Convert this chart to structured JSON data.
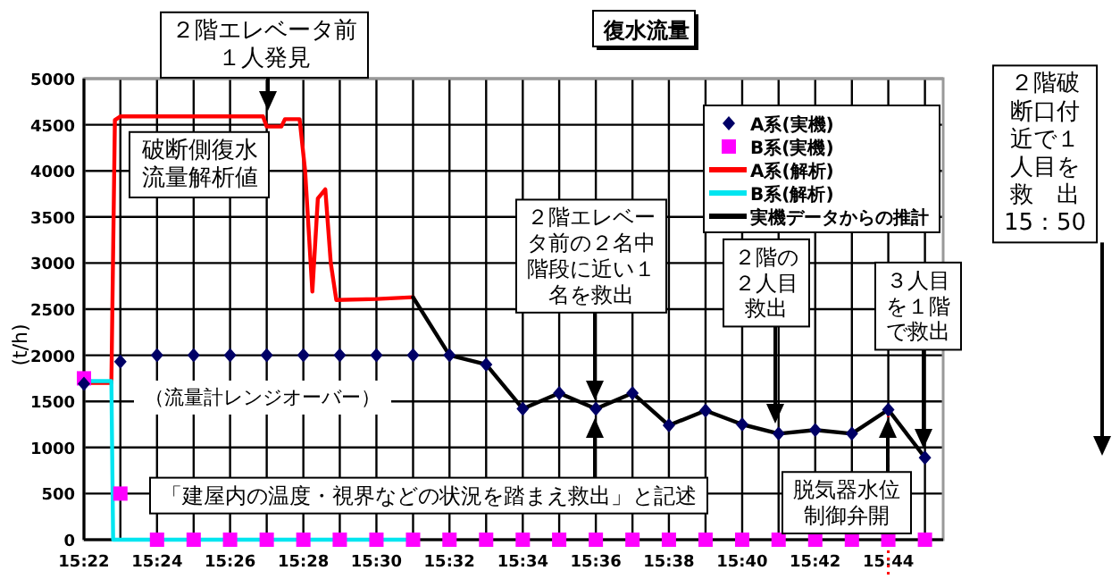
{
  "chart_data": {
    "type": "line",
    "title": "復水流量",
    "ylabel": "(t/h)",
    "xlim": [
      15.3667,
      15.7583
    ],
    "ylim": [
      0,
      5000
    ],
    "xticks": [
      {
        "value": 15.3667,
        "label": "15:22"
      },
      {
        "value": 15.3833,
        "label": null
      },
      {
        "value": 15.4,
        "label": "15:24"
      },
      {
        "value": 15.4167,
        "label": null
      },
      {
        "value": 15.4333,
        "label": "15:26"
      },
      {
        "value": 15.45,
        "label": null
      },
      {
        "value": 15.4667,
        "label": "15:28"
      },
      {
        "value": 15.4833,
        "label": null
      },
      {
        "value": 15.5,
        "label": "15:30"
      },
      {
        "value": 15.5167,
        "label": null
      },
      {
        "value": 15.5333,
        "label": "15:32"
      },
      {
        "value": 15.55,
        "label": null
      },
      {
        "value": 15.5667,
        "label": "15:34"
      },
      {
        "value": 15.5833,
        "label": null
      },
      {
        "value": 15.6,
        "label": "15:36"
      },
      {
        "value": 15.6167,
        "label": null
      },
      {
        "value": 15.6333,
        "label": "15:38"
      },
      {
        "value": 15.65,
        "label": null
      },
      {
        "value": 15.6667,
        "label": "15:40"
      },
      {
        "value": 15.6833,
        "label": null
      },
      {
        "value": 15.7,
        "label": "15:42"
      },
      {
        "value": 15.7167,
        "label": null
      },
      {
        "value": 15.7333,
        "label": "15:44"
      },
      {
        "value": 15.75,
        "label": null
      }
    ],
    "yticks": [
      0,
      500,
      1000,
      1500,
      2000,
      2500,
      3000,
      3500,
      4000,
      4500,
      5000
    ],
    "grid": true,
    "legend": "top right",
    "series": [
      {
        "name": "A系(実機)",
        "type": "scatter",
        "marker": "diamond",
        "color": "#000066",
        "x": [
          15.3667,
          15.3833,
          15.4,
          15.4167,
          15.4333,
          15.45,
          15.4667,
          15.4833,
          15.5,
          15.5167,
          15.5333,
          15.55,
          15.5667,
          15.5833,
          15.6,
          15.6167,
          15.6333,
          15.65,
          15.6667,
          15.6833,
          15.7,
          15.7167,
          15.7333,
          15.75
        ],
        "values": [
          1690,
          1930,
          2000,
          2000,
          2000,
          2000,
          2000,
          2000,
          2000,
          2000,
          2000,
          1900,
          1420,
          1590,
          1420,
          1590,
          1240,
          1400,
          1250,
          1150,
          1190,
          1150,
          1410,
          890
        ]
      },
      {
        "name": "B系(実機)",
        "type": "scatter",
        "marker": "square",
        "color": "#ff00ff",
        "x": [
          15.3667,
          15.3833,
          15.4,
          15.4167,
          15.4333,
          15.45,
          15.4667,
          15.4833,
          15.5,
          15.5167,
          15.5333,
          15.55,
          15.5667,
          15.5833,
          15.6,
          15.6167,
          15.6333,
          15.65,
          15.6667,
          15.6833,
          15.7,
          15.7167,
          15.7333,
          15.75
        ],
        "values": [
          1750,
          500,
          0,
          0,
          0,
          0,
          0,
          0,
          0,
          0,
          0,
          0,
          0,
          0,
          0,
          0,
          0,
          0,
          0,
          0,
          0,
          0,
          0,
          0
        ]
      },
      {
        "name": "A系(解析)",
        "color": "#ff0000",
        "x": [
          15.3667,
          15.3792,
          15.3808,
          15.3833,
          15.4483,
          15.45,
          15.4567,
          15.4583,
          15.465,
          15.4675,
          15.4708,
          15.4733,
          15.4767,
          15.4792,
          15.4817,
          15.5,
          15.5167
        ],
        "values": [
          1700,
          1700,
          4550,
          4590,
          4590,
          4480,
          4480,
          4560,
          4560,
          4000,
          2690,
          3700,
          3800,
          3000,
          2600,
          2610,
          2630
        ]
      },
      {
        "name": "B系(解析)",
        "color": "#00e5f0",
        "x": [
          15.3667,
          15.3792,
          15.38,
          15.5167
        ],
        "values": [
          1720,
          1720,
          0,
          0
        ]
      },
      {
        "name": "実機データからの推計",
        "color": "#000000",
        "x": [
          15.5167,
          15.5333,
          15.55,
          15.5667,
          15.5833,
          15.6,
          15.6167,
          15.6333,
          15.65,
          15.6667,
          15.6833,
          15.7,
          15.7167,
          15.7333,
          15.75
        ],
        "values": [
          2630,
          2000,
          1900,
          1420,
          1590,
          1420,
          1590,
          1240,
          1400,
          1250,
          1150,
          1190,
          1150,
          1410,
          890
        ]
      }
    ],
    "ref_lines": [
      {
        "axis": "x",
        "value": 15.7333,
        "color": "#ff0000",
        "line_style": "dotted"
      }
    ],
    "annotations": [
      "２階エレベータ前１人発見",
      "破断側復水流量解析値",
      "（流量計レンジオーバー）",
      "２階エレベータ前の２名中階段に近い１名を救出",
      "「建屋内の温度・視界などの状況を踏まえ救出」と記述",
      "２階の２人目救出",
      "３人目を１階で救出",
      "脱気器水位制御弁開",
      "２階破断口付近で１人目を救　出15：50"
    ]
  }
}
